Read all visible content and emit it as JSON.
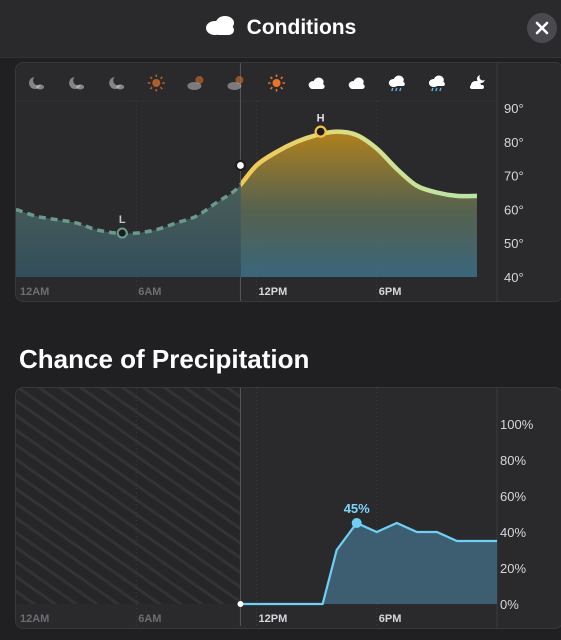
{
  "header": {
    "title": "Conditions",
    "title_icon": "cloud-icon",
    "close_icon": "close-icon"
  },
  "temperature_chart": {
    "condition_icons": [
      "moon-cloud",
      "moon-cloud",
      "moon-cloud",
      "sun",
      "sun-cloud",
      "sun-cloud",
      "sun",
      "cloud",
      "cloud",
      "cloud-rain",
      "cloud-rain",
      "cloud-moon"
    ],
    "y_tick_labels": [
      "90°",
      "80°",
      "70°",
      "60°",
      "50°",
      "40°"
    ],
    "x_tick_labels": [
      "12AM",
      "6AM",
      "12PM",
      "6PM"
    ],
    "low_marker": "L",
    "high_marker": "H"
  },
  "precipitation": {
    "section_title": "Chance of Precipitation",
    "y_tick_labels": [
      "100%",
      "80%",
      "60%",
      "40%",
      "20%",
      "0%"
    ],
    "x_tick_labels": [
      "12AM",
      "6AM",
      "12PM",
      "6PM"
    ],
    "peak_label": "45%"
  },
  "chart_data": [
    {
      "type": "line",
      "x": [
        0,
        1,
        2,
        3,
        4,
        5,
        6,
        7,
        8,
        9,
        10,
        11,
        12,
        13,
        14,
        15,
        16,
        17,
        18,
        19,
        20,
        21,
        22,
        23
      ],
      "series": [
        {
          "values": [
            60,
            58,
            57,
            56,
            54,
            53,
            53,
            54,
            56,
            58,
            62,
            66,
            73,
            77,
            80,
            82,
            83,
            82,
            78,
            72,
            67,
            65,
            64,
            64
          ]
        }
      ],
      "ylim": [
        40,
        95
      ],
      "low": {
        "x": 5.3,
        "y": 53
      },
      "high": {
        "x": 15.2,
        "y": 83
      },
      "current": {
        "x": 11.2,
        "y": 73
      }
    },
    {
      "type": "area",
      "x": [
        11.2,
        15.3,
        16.0,
        17.0,
        18.0,
        19.0,
        20.0,
        21.0,
        22.0,
        23.0,
        24.0
      ],
      "series": [
        {
          "values": [
            0,
            0,
            30,
            45,
            40,
            45,
            40,
            40,
            35,
            35,
            35
          ]
        }
      ],
      "ylim": [
        0,
        100
      ],
      "peak": {
        "x": 17.0,
        "y": 45
      }
    }
  ]
}
